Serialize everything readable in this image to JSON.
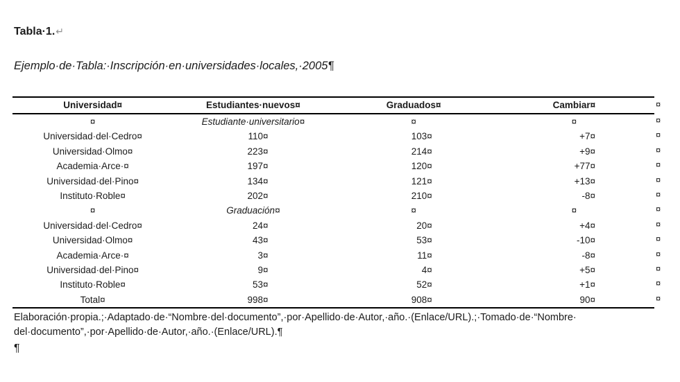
{
  "document": {
    "title": "Tabla·1.",
    "title_line_break_mark": "↵",
    "caption": "Ejemplo·de·Tabla:·Inscripción·en·universidades·locales,·2005",
    "caption_paragraph_mark": "¶",
    "final_paragraph_mark": "¶"
  },
  "table": {
    "columns": [
      "Universidad¤",
      "Estudiantes·nuevos¤",
      "Graduados¤",
      "Cambiar¤"
    ],
    "row_end_marker": "¤",
    "rows": [
      {
        "type": "section",
        "cells": [
          "¤",
          "Estudiante·universitario¤",
          "¤",
          "¤"
        ]
      },
      {
        "type": "data",
        "cells": [
          "Universidad·del·Cedro¤",
          "110¤",
          "103¤",
          "+7¤"
        ]
      },
      {
        "type": "data",
        "cells": [
          "Universidad·Olmo¤",
          "223¤",
          "214¤",
          "+9¤"
        ]
      },
      {
        "type": "data",
        "cells": [
          "Academia·Arce·¤",
          "197¤",
          "120¤",
          "+77¤"
        ]
      },
      {
        "type": "data",
        "cells": [
          "Universidad·del·Pino¤",
          "134¤",
          "121¤",
          "+13¤"
        ]
      },
      {
        "type": "data",
        "cells": [
          "Instituto·Roble¤",
          "202¤",
          "210¤",
          "-8¤"
        ]
      },
      {
        "type": "section",
        "cells": [
          "¤",
          "Graduación¤",
          "¤",
          "¤"
        ]
      },
      {
        "type": "data",
        "cells": [
          "Universidad·del·Cedro¤",
          "24¤",
          "20¤",
          "+4¤"
        ]
      },
      {
        "type": "data",
        "cells": [
          "Universidad·Olmo¤",
          "43¤",
          "53¤",
          "-10¤"
        ]
      },
      {
        "type": "data",
        "cells": [
          "Academia·Arce·¤",
          "3¤",
          "11¤",
          "-8¤"
        ]
      },
      {
        "type": "data",
        "cells": [
          "Universidad·del·Pino¤",
          "9¤",
          "4¤",
          "+5¤"
        ]
      },
      {
        "type": "data",
        "cells": [
          "Instituto·Roble¤",
          "53¤",
          "52¤",
          "+1¤"
        ]
      },
      {
        "type": "data",
        "cells": [
          "Total¤",
          "998¤",
          "908¤",
          "90¤"
        ]
      }
    ]
  },
  "notes": {
    "lines": [
      "Elaboración·propia.;·Adaptado·de·“Nombre·del·documento”,·por·Apellido·de·Autor,·año.·(Enlace/URL).;·Tomado·de·“Nombre·",
      "del·documento”,·por·Apellido·de·Autor,·año.·(Enlace/URL).¶"
    ]
  }
}
